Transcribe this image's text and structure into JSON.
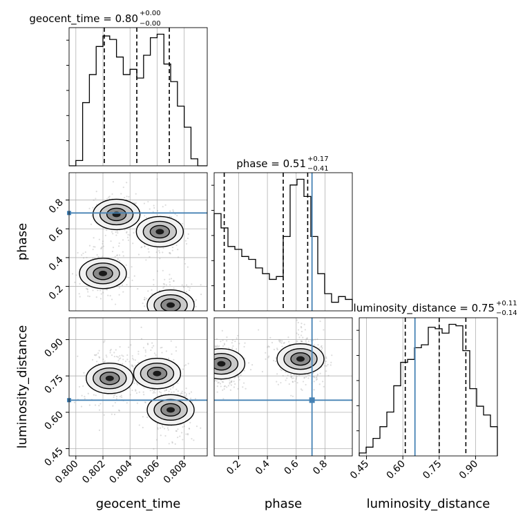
{
  "chart_data": {
    "type": "corner",
    "parameters": [
      "geocent_time",
      "phase",
      "luminosity_distance"
    ],
    "truths": {
      "geocent_time": null,
      "phase": 0.71,
      "luminosity_distance": 0.65
    },
    "colors": {
      "hist": "#000000",
      "truth": "#4682b4",
      "grid": "#b0b0b0",
      "samples": "#9a9a9a"
    },
    "grid": true,
    "titles": [
      {
        "param": "geocent_time",
        "main": "geocent_time = 0.80",
        "sup": "+0.00",
        "sub": "−0.00"
      },
      {
        "param": "phase",
        "main": "phase = 0.51",
        "sup": "+0.17",
        "sub": "−0.41"
      },
      {
        "param": "luminosity_distance",
        "main": "luminosity_distance = 0.75",
        "sup": "+0.11",
        "sub": "−0.14"
      }
    ],
    "axes": {
      "geocent_time": {
        "label": "geocent_time",
        "range": [
          0.7995,
          0.8097
        ],
        "ticks": [
          0.8,
          0.802,
          0.804,
          0.806,
          0.808
        ],
        "tick_labels": [
          "0.800",
          "0.802",
          "0.804",
          "0.806",
          "0.808"
        ]
      },
      "phase": {
        "label": "phase",
        "range": [
          0.03,
          0.99
        ],
        "ticks": [
          0.2,
          0.4,
          0.6,
          0.8
        ],
        "tick_labels": [
          "0.2",
          "0.4",
          "0.6",
          "0.8"
        ]
      },
      "luminosity_distance": {
        "label": "luminosity_distance",
        "range": [
          0.42,
          0.99
        ],
        "ticks": [
          0.45,
          0.6,
          0.75,
          0.9
        ],
        "tick_labels": [
          "0.45",
          "0.60",
          "0.75",
          "0.90"
        ]
      }
    },
    "histograms": [
      {
        "param": "geocent_time",
        "quantiles": [
          0.8021,
          0.8045,
          0.8069
        ],
        "edges": [
          0.7995,
          0.8,
          0.8005,
          0.801,
          0.8015,
          0.802,
          0.8025,
          0.803,
          0.8035,
          0.804,
          0.8045,
          0.805,
          0.8055,
          0.806,
          0.8065,
          0.807,
          0.8075,
          0.808,
          0.8085,
          0.809,
          0.8097
        ],
        "counts": [
          0,
          3,
          36,
          52,
          68,
          74,
          72,
          62,
          52,
          55,
          50,
          63,
          73,
          75,
          58,
          48,
          34,
          22,
          4,
          0
        ]
      },
      {
        "param": "phase",
        "quantiles": [
          0.1,
          0.51,
          0.68
        ],
        "edges": [
          0.03,
          0.078,
          0.126,
          0.174,
          0.222,
          0.27,
          0.318,
          0.366,
          0.414,
          0.462,
          0.51,
          0.558,
          0.606,
          0.654,
          0.702,
          0.75,
          0.798,
          0.846,
          0.894,
          0.942,
          0.99
        ],
        "counts": [
          68,
          58,
          45,
          43,
          38,
          36,
          30,
          26,
          22,
          24,
          52,
          88,
          92,
          80,
          52,
          26,
          12,
          6,
          10,
          8
        ]
      },
      {
        "param": "luminosity_distance",
        "quantiles": [
          0.61,
          0.75,
          0.86
        ],
        "edges": [
          0.42,
          0.4485,
          0.477,
          0.5055,
          0.534,
          0.5625,
          0.591,
          0.6195,
          0.648,
          0.6765,
          0.705,
          0.7335,
          0.762,
          0.7905,
          0.819,
          0.8475,
          0.876,
          0.9045,
          0.933,
          0.9615,
          0.99
        ],
        "counts": [
          2,
          6,
          12,
          20,
          30,
          48,
          64,
          66,
          74,
          76,
          88,
          87,
          84,
          90,
          89,
          72,
          46,
          34,
          28,
          20
        ]
      }
    ],
    "density_modes": [
      {
        "pair": [
          "geocent_time",
          "phase"
        ],
        "modes": [
          [
            0.803,
            0.7
          ],
          [
            0.8062,
            0.58
          ],
          [
            0.802,
            0.29
          ],
          [
            0.807,
            0.07
          ]
        ]
      },
      {
        "pair": [
          "geocent_time",
          "luminosity_distance"
        ],
        "modes": [
          [
            0.8025,
            0.74
          ],
          [
            0.806,
            0.76
          ],
          [
            0.807,
            0.61
          ]
        ]
      },
      {
        "pair": [
          "phase",
          "luminosity_distance"
        ],
        "modes": [
          [
            0.63,
            0.82
          ],
          [
            0.08,
            0.8
          ]
        ]
      }
    ]
  }
}
